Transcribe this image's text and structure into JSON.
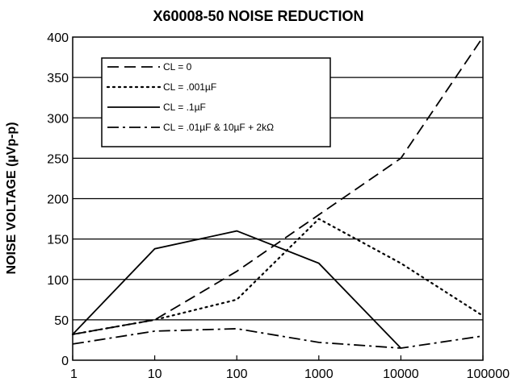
{
  "chart_data": {
    "type": "line",
    "title": "X60008-50 NOISE REDUCTION",
    "xlabel": "",
    "ylabel": "NOISE VOLTAGE (µVp-p)",
    "xscale": "log",
    "xlim": [
      1,
      100000
    ],
    "ylim": [
      0,
      400
    ],
    "x_ticks": [
      1,
      10,
      100,
      1000,
      10000,
      100000
    ],
    "x_tick_labels": [
      "1",
      "10",
      "100",
      "1000",
      "10000",
      "100000"
    ],
    "y_ticks": [
      0,
      50,
      100,
      150,
      200,
      250,
      300,
      350,
      400
    ],
    "y_tick_labels": [
      "0",
      "50",
      "100",
      "150",
      "200",
      "250",
      "300",
      "350",
      "400"
    ],
    "grid": "horizontal",
    "legend": "top-left",
    "series": [
      {
        "name": "CL = 0",
        "dash": "dashed",
        "x": [
          1,
          10,
          100,
          1000,
          10000,
          100000
        ],
        "y": [
          32,
          50,
          110,
          180,
          250,
          400
        ]
      },
      {
        "name": "CL = .001µF",
        "dash": "dotted",
        "x": [
          1,
          10,
          100,
          1000,
          10000,
          100000
        ],
        "y": [
          32,
          50,
          75,
          175,
          120,
          55
        ]
      },
      {
        "name": "CL = .1µF",
        "dash": "solid",
        "x": [
          1,
          10,
          100,
          1000,
          10000
        ],
        "y": [
          32,
          138,
          160,
          120,
          15
        ]
      },
      {
        "name": "CL = .01µF & 10µF + 2kΩ",
        "dash": "dashdot",
        "x": [
          1,
          10,
          100,
          1000,
          10000,
          100000
        ],
        "y": [
          20,
          36,
          39,
          22,
          15,
          30
        ]
      }
    ]
  }
}
